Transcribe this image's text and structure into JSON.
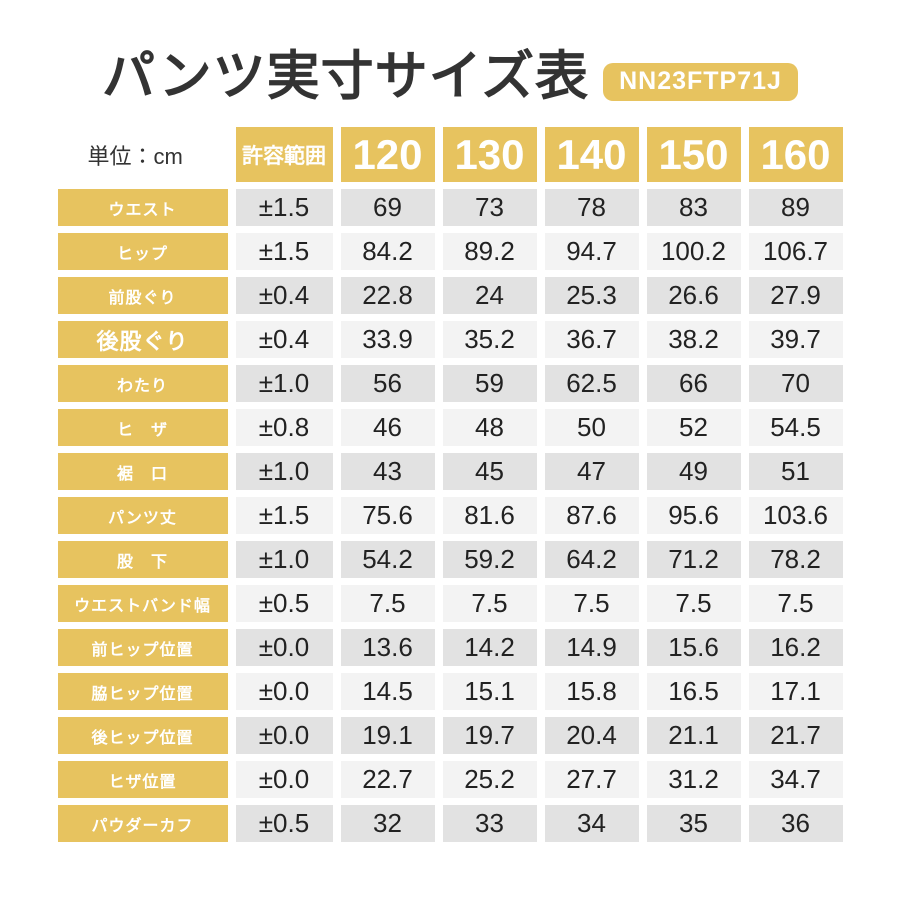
{
  "title": "パンツ実寸サイズ表",
  "product_code": "NN23FTP71J",
  "unit_label": "単位：cm",
  "colors": {
    "accent_yellow": "#E7C35F",
    "row_gray_dark": "#E2E2E2",
    "row_gray_light": "#F3F3F3",
    "title_text": "#333333",
    "header_text": "#FFFFFF"
  },
  "chart_data": {
    "type": "table",
    "title": "パンツ実寸サイズ表",
    "unit": "cm",
    "columns": [
      "許容範囲",
      "120",
      "130",
      "140",
      "150",
      "160"
    ],
    "rows": [
      {
        "label": "ウエスト",
        "tolerance": "±1.5",
        "values": [
          "69",
          "73",
          "78",
          "83",
          "89"
        ],
        "emphasis": false
      },
      {
        "label": "ヒップ",
        "tolerance": "±1.5",
        "values": [
          "84.2",
          "89.2",
          "94.7",
          "100.2",
          "106.7"
        ],
        "emphasis": false
      },
      {
        "label": "前股ぐり",
        "tolerance": "±0.4",
        "values": [
          "22.8",
          "24",
          "25.3",
          "26.6",
          "27.9"
        ],
        "emphasis": false
      },
      {
        "label": "後股ぐり",
        "tolerance": "±0.4",
        "values": [
          "33.9",
          "35.2",
          "36.7",
          "38.2",
          "39.7"
        ],
        "emphasis": true
      },
      {
        "label": "わたり",
        "tolerance": "±1.0",
        "values": [
          "56",
          "59",
          "62.5",
          "66",
          "70"
        ],
        "emphasis": false
      },
      {
        "label": "ヒ　ザ",
        "tolerance": "±0.8",
        "values": [
          "46",
          "48",
          "50",
          "52",
          "54.5"
        ],
        "emphasis": false
      },
      {
        "label": "裾　口",
        "tolerance": "±1.0",
        "values": [
          "43",
          "45",
          "47",
          "49",
          "51"
        ],
        "emphasis": false
      },
      {
        "label": "パンツ丈",
        "tolerance": "±1.5",
        "values": [
          "75.6",
          "81.6",
          "87.6",
          "95.6",
          "103.6"
        ],
        "emphasis": false
      },
      {
        "label": "股　下",
        "tolerance": "±1.0",
        "values": [
          "54.2",
          "59.2",
          "64.2",
          "71.2",
          "78.2"
        ],
        "emphasis": false
      },
      {
        "label": "ウエストバンド幅",
        "tolerance": "±0.5",
        "values": [
          "7.5",
          "7.5",
          "7.5",
          "7.5",
          "7.5"
        ],
        "emphasis": false
      },
      {
        "label": "前ヒップ位置",
        "tolerance": "±0.0",
        "values": [
          "13.6",
          "14.2",
          "14.9",
          "15.6",
          "16.2"
        ],
        "emphasis": false
      },
      {
        "label": "脇ヒップ位置",
        "tolerance": "±0.0",
        "values": [
          "14.5",
          "15.1",
          "15.8",
          "16.5",
          "17.1"
        ],
        "emphasis": false
      },
      {
        "label": "後ヒップ位置",
        "tolerance": "±0.0",
        "values": [
          "19.1",
          "19.7",
          "20.4",
          "21.1",
          "21.7"
        ],
        "emphasis": false
      },
      {
        "label": "ヒザ位置",
        "tolerance": "±0.0",
        "values": [
          "22.7",
          "25.2",
          "27.7",
          "31.2",
          "34.7"
        ],
        "emphasis": false
      },
      {
        "label": "パウダーカフ",
        "tolerance": "±0.5",
        "values": [
          "32",
          "33",
          "34",
          "35",
          "36"
        ],
        "emphasis": false
      }
    ]
  }
}
